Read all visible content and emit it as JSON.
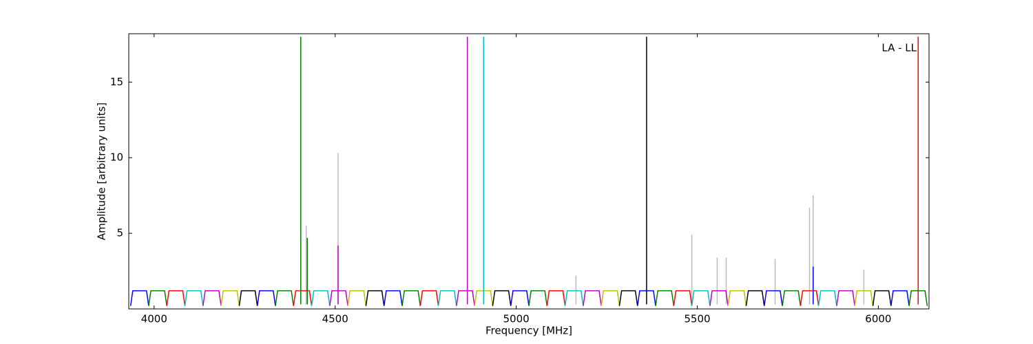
{
  "chart_data": {
    "type": "line",
    "xlabel": "Frequency [MHz]",
    "ylabel": "Amplitude [arbitrary units]",
    "annotation": "LA - LL",
    "xlim": [
      3930,
      6140
    ],
    "ylim": [
      0,
      18.2
    ],
    "xticks": [
      4000,
      4500,
      5000,
      5500,
      6000
    ],
    "yticks": [
      5,
      10,
      15
    ],
    "series": [
      {
        "color": "#bbbbbb",
        "x": [
          4420,
          4420,
          null,
          4508,
          4508,
          null,
          5165,
          5165,
          null,
          5485,
          5485,
          null,
          5555,
          5555,
          null,
          5580,
          5580,
          null,
          5715,
          5715,
          null,
          5810,
          5810,
          null,
          5820,
          5820,
          null,
          5960,
          5960
        ],
        "values": [
          0.3,
          5.5,
          null,
          0.3,
          10.3,
          null,
          0.3,
          2.2,
          null,
          0.3,
          4.9,
          null,
          0.3,
          3.4,
          null,
          0.3,
          3.4,
          null,
          0.3,
          3.3,
          null,
          0.3,
          6.7,
          null,
          0.3,
          7.5,
          null,
          0.3,
          2.6
        ]
      },
      {
        "color": "#0000ff",
        "x": [
          3935,
          3941,
          3979,
          3985,
          null,
          4285,
          4291,
          4329,
          4335,
          null,
          4635,
          4641,
          4679,
          4685,
          null,
          4985,
          4991,
          5029,
          5035,
          null,
          5335,
          5341,
          5379,
          5385,
          null,
          5685,
          5691,
          5729,
          5735,
          null,
          6035,
          6041,
          6079,
          6085
        ],
        "values": [
          0.2,
          1.2,
          1.2,
          0.2,
          null,
          0.2,
          1.2,
          1.2,
          0.2,
          null,
          0.2,
          1.2,
          1.2,
          0.2,
          null,
          0.2,
          1.2,
          1.2,
          0.2,
          null,
          0.2,
          1.2,
          1.2,
          0.2,
          null,
          0.2,
          1.2,
          1.2,
          0.2,
          null,
          0.2,
          1.2,
          1.2,
          0.2
        ]
      },
      {
        "color": "#008000",
        "x": [
          3985,
          3991,
          4029,
          4035,
          null,
          4335,
          4341,
          4379,
          4385,
          null,
          4685,
          4691,
          4729,
          4735,
          null,
          5035,
          5041,
          5079,
          5085,
          null,
          5385,
          5391,
          5429,
          5435,
          null,
          5735,
          5741,
          5779,
          5785,
          null,
          6085,
          6091,
          6129,
          6135
        ],
        "values": [
          0.2,
          1.2,
          1.2,
          0.2,
          null,
          0.2,
          1.2,
          1.2,
          0.2,
          null,
          0.2,
          1.2,
          1.2,
          0.2,
          null,
          0.2,
          1.2,
          1.2,
          0.2,
          null,
          0.2,
          1.2,
          1.2,
          0.2,
          null,
          0.2,
          1.2,
          1.2,
          0.2,
          null,
          0.2,
          1.2,
          1.2,
          0.2
        ]
      },
      {
        "color": "#ff0000",
        "x": [
          4035,
          4041,
          4079,
          4085,
          null,
          4385,
          4391,
          4429,
          4435,
          null,
          4735,
          4741,
          4779,
          4785,
          null,
          5085,
          5091,
          5129,
          5135,
          null,
          5435,
          5441,
          5479,
          5485,
          null,
          5785,
          5791,
          5829,
          5835
        ],
        "values": [
          0.2,
          1.2,
          1.2,
          0.2,
          null,
          0.2,
          1.2,
          1.2,
          0.2,
          null,
          0.2,
          1.2,
          1.2,
          0.2,
          null,
          0.2,
          1.2,
          1.2,
          0.2,
          null,
          0.2,
          1.2,
          1.2,
          0.2,
          null,
          0.2,
          1.2,
          1.2,
          0.2
        ]
      },
      {
        "color": "#00bfbf",
        "x": [
          4085,
          4091,
          4129,
          4135,
          null,
          4435,
          4441,
          4479,
          4485,
          null,
          4785,
          4791,
          4829,
          4835,
          null,
          5135,
          5141,
          5179,
          5185,
          null,
          5485,
          5491,
          5529,
          5535,
          null,
          5835,
          5841,
          5879,
          5885
        ],
        "values": [
          0.2,
          1.2,
          1.2,
          0.2,
          null,
          0.2,
          1.2,
          1.2,
          0.2,
          null,
          0.2,
          1.2,
          1.2,
          0.2,
          null,
          0.2,
          1.2,
          1.2,
          0.2,
          null,
          0.2,
          1.2,
          1.2,
          0.2,
          null,
          0.2,
          1.2,
          1.2,
          0.2
        ]
      },
      {
        "color": "#bf00bf",
        "x": [
          4135,
          4141,
          4179,
          4185,
          null,
          4485,
          4491,
          4529,
          4535,
          null,
          4835,
          4841,
          4879,
          4885,
          null,
          5185,
          5191,
          5229,
          5235,
          null,
          5535,
          5541,
          5579,
          5585,
          null,
          5885,
          5891,
          5929,
          5935
        ],
        "values": [
          0.2,
          1.2,
          1.2,
          0.2,
          null,
          0.2,
          1.2,
          1.2,
          0.2,
          null,
          0.2,
          1.2,
          1.2,
          0.2,
          null,
          0.2,
          1.2,
          1.2,
          0.2,
          null,
          0.2,
          1.2,
          1.2,
          0.2,
          null,
          0.2,
          1.2,
          1.2,
          0.2
        ]
      },
      {
        "color": "#bfbf00",
        "x": [
          4185,
          4191,
          4229,
          4235,
          null,
          4535,
          4541,
          4579,
          4585,
          null,
          4885,
          4891,
          4929,
          4935,
          null,
          5235,
          5241,
          5279,
          5285,
          null,
          5585,
          5591,
          5629,
          5635,
          null,
          5935,
          5941,
          5979,
          5985
        ],
        "values": [
          0.2,
          1.2,
          1.2,
          0.2,
          null,
          0.2,
          1.2,
          1.2,
          0.2,
          null,
          0.2,
          1.2,
          1.2,
          0.2,
          null,
          0.2,
          1.2,
          1.2,
          0.2,
          null,
          0.2,
          1.2,
          1.2,
          0.2,
          null,
          0.2,
          1.2,
          1.2,
          0.2
        ]
      },
      {
        "color": "#000000",
        "x": [
          4235,
          4241,
          4279,
          4285,
          null,
          4585,
          4591,
          4629,
          4635,
          null,
          4935,
          4941,
          4979,
          4985,
          null,
          5285,
          5291,
          5329,
          5335,
          null,
          5635,
          5641,
          5679,
          5685,
          null,
          5985,
          5991,
          6029,
          6035
        ],
        "values": [
          0.2,
          1.2,
          1.2,
          0.2,
          null,
          0.2,
          1.2,
          1.2,
          0.2,
          null,
          0.2,
          1.2,
          1.2,
          0.2,
          null,
          0.2,
          1.2,
          1.2,
          0.2,
          null,
          0.2,
          1.2,
          1.2,
          0.2,
          null,
          0.2,
          1.2,
          1.2,
          0.2
        ]
      },
      {
        "color": "#008000",
        "x": [
          4405,
          4405,
          null,
          4423,
          4423
        ],
        "values": [
          0.3,
          18,
          null,
          0.3,
          4.7
        ]
      },
      {
        "color": "#bf00bf",
        "x": [
          4508,
          4508,
          null,
          4865,
          4865
        ],
        "values": [
          0.3,
          4.2,
          null,
          0.3,
          18
        ]
      },
      {
        "color": "#00bfbf",
        "x": [
          4910,
          4910
        ],
        "values": [
          0.3,
          18
        ]
      },
      {
        "color": "#000000",
        "x": [
          5360,
          5360
        ],
        "values": [
          0.3,
          18
        ]
      },
      {
        "color": "#0000ff",
        "x": [
          5820,
          5820
        ],
        "values": [
          0.3,
          2.8
        ]
      },
      {
        "color": "#ff0000",
        "x": [
          6110,
          6110
        ],
        "values": [
          0.3,
          18
        ]
      }
    ]
  }
}
